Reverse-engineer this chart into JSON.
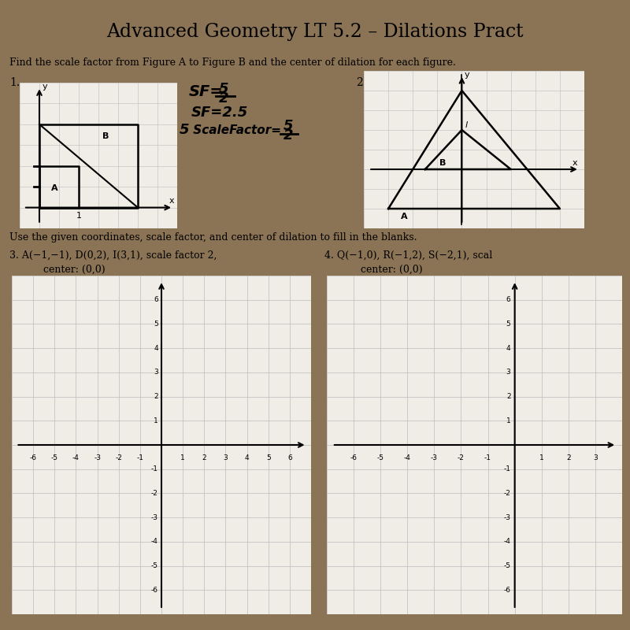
{
  "title": "Advanced Geometry LT 5.2 – Dilations Pract",
  "wood_color": "#8B7355",
  "paper_color": "#f0ede6",
  "text_color": "#1a1a1a",
  "instruction1": "Find the scale factor from Figure A to Figure B and the center of dilation for each figure.",
  "instruction2": "Use the given coordinates, scale factor, and center of dilation to fill in the blanks.",
  "prob3_line1": "3. A(−1,−1), D(0,2), I(3,1), scale factor 2,",
  "prob3_line2": "center: (0,0)",
  "prob4_line1": "4. Q(−1,0), R(−1,2), S(−2,1), scal",
  "prob4_line2": "center: (0,0)",
  "grid_color": "#aaaaaa",
  "grid_lw": 0.5,
  "axis_lw": 1.5
}
